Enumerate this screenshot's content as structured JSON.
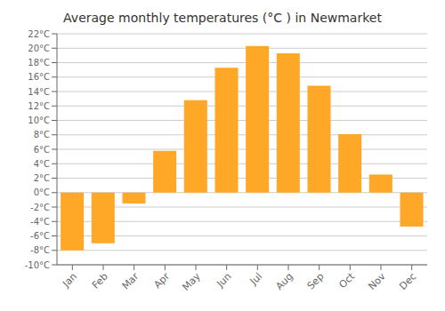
{
  "chart_data": {
    "type": "bar",
    "title": "Average monthly temperatures (°C ) in Newmarket",
    "categories": [
      "Jan",
      "Feb",
      "Mar",
      "Apr",
      "May",
      "Jun",
      "Jul",
      "Aug",
      "Sep",
      "Oct",
      "Nov",
      "Dec"
    ],
    "values": [
      -8,
      -7,
      -1.5,
      5.8,
      12.8,
      17.3,
      20.3,
      19.3,
      14.8,
      8.1,
      2.5,
      -4.7
    ],
    "color": "#FFA726",
    "ylim": [
      -10,
      22
    ],
    "yticks": [
      {
        "value": -10,
        "label": "-10°C"
      },
      {
        "value": -8,
        "label": "-8°C"
      },
      {
        "value": -6,
        "label": "-6°C"
      },
      {
        "value": -4,
        "label": "-4°C"
      },
      {
        "value": -2,
        "label": "-2°C"
      },
      {
        "value": 0,
        "label": "0°C"
      },
      {
        "value": 2,
        "label": "2°C"
      },
      {
        "value": 4,
        "label": "4°C"
      },
      {
        "value": 6,
        "label": "6°C"
      },
      {
        "value": 8,
        "label": "8°C"
      },
      {
        "value": 10,
        "label": "10°C"
      },
      {
        "value": 12,
        "label": "12°C"
      },
      {
        "value": 14,
        "label": "14°C"
      },
      {
        "value": 16,
        "label": "16°C"
      },
      {
        "value": 18,
        "label": "18°C"
      },
      {
        "value": 20,
        "label": "20°C"
      },
      {
        "value": 22,
        "label": "22°C"
      }
    ],
    "grid": true
  }
}
